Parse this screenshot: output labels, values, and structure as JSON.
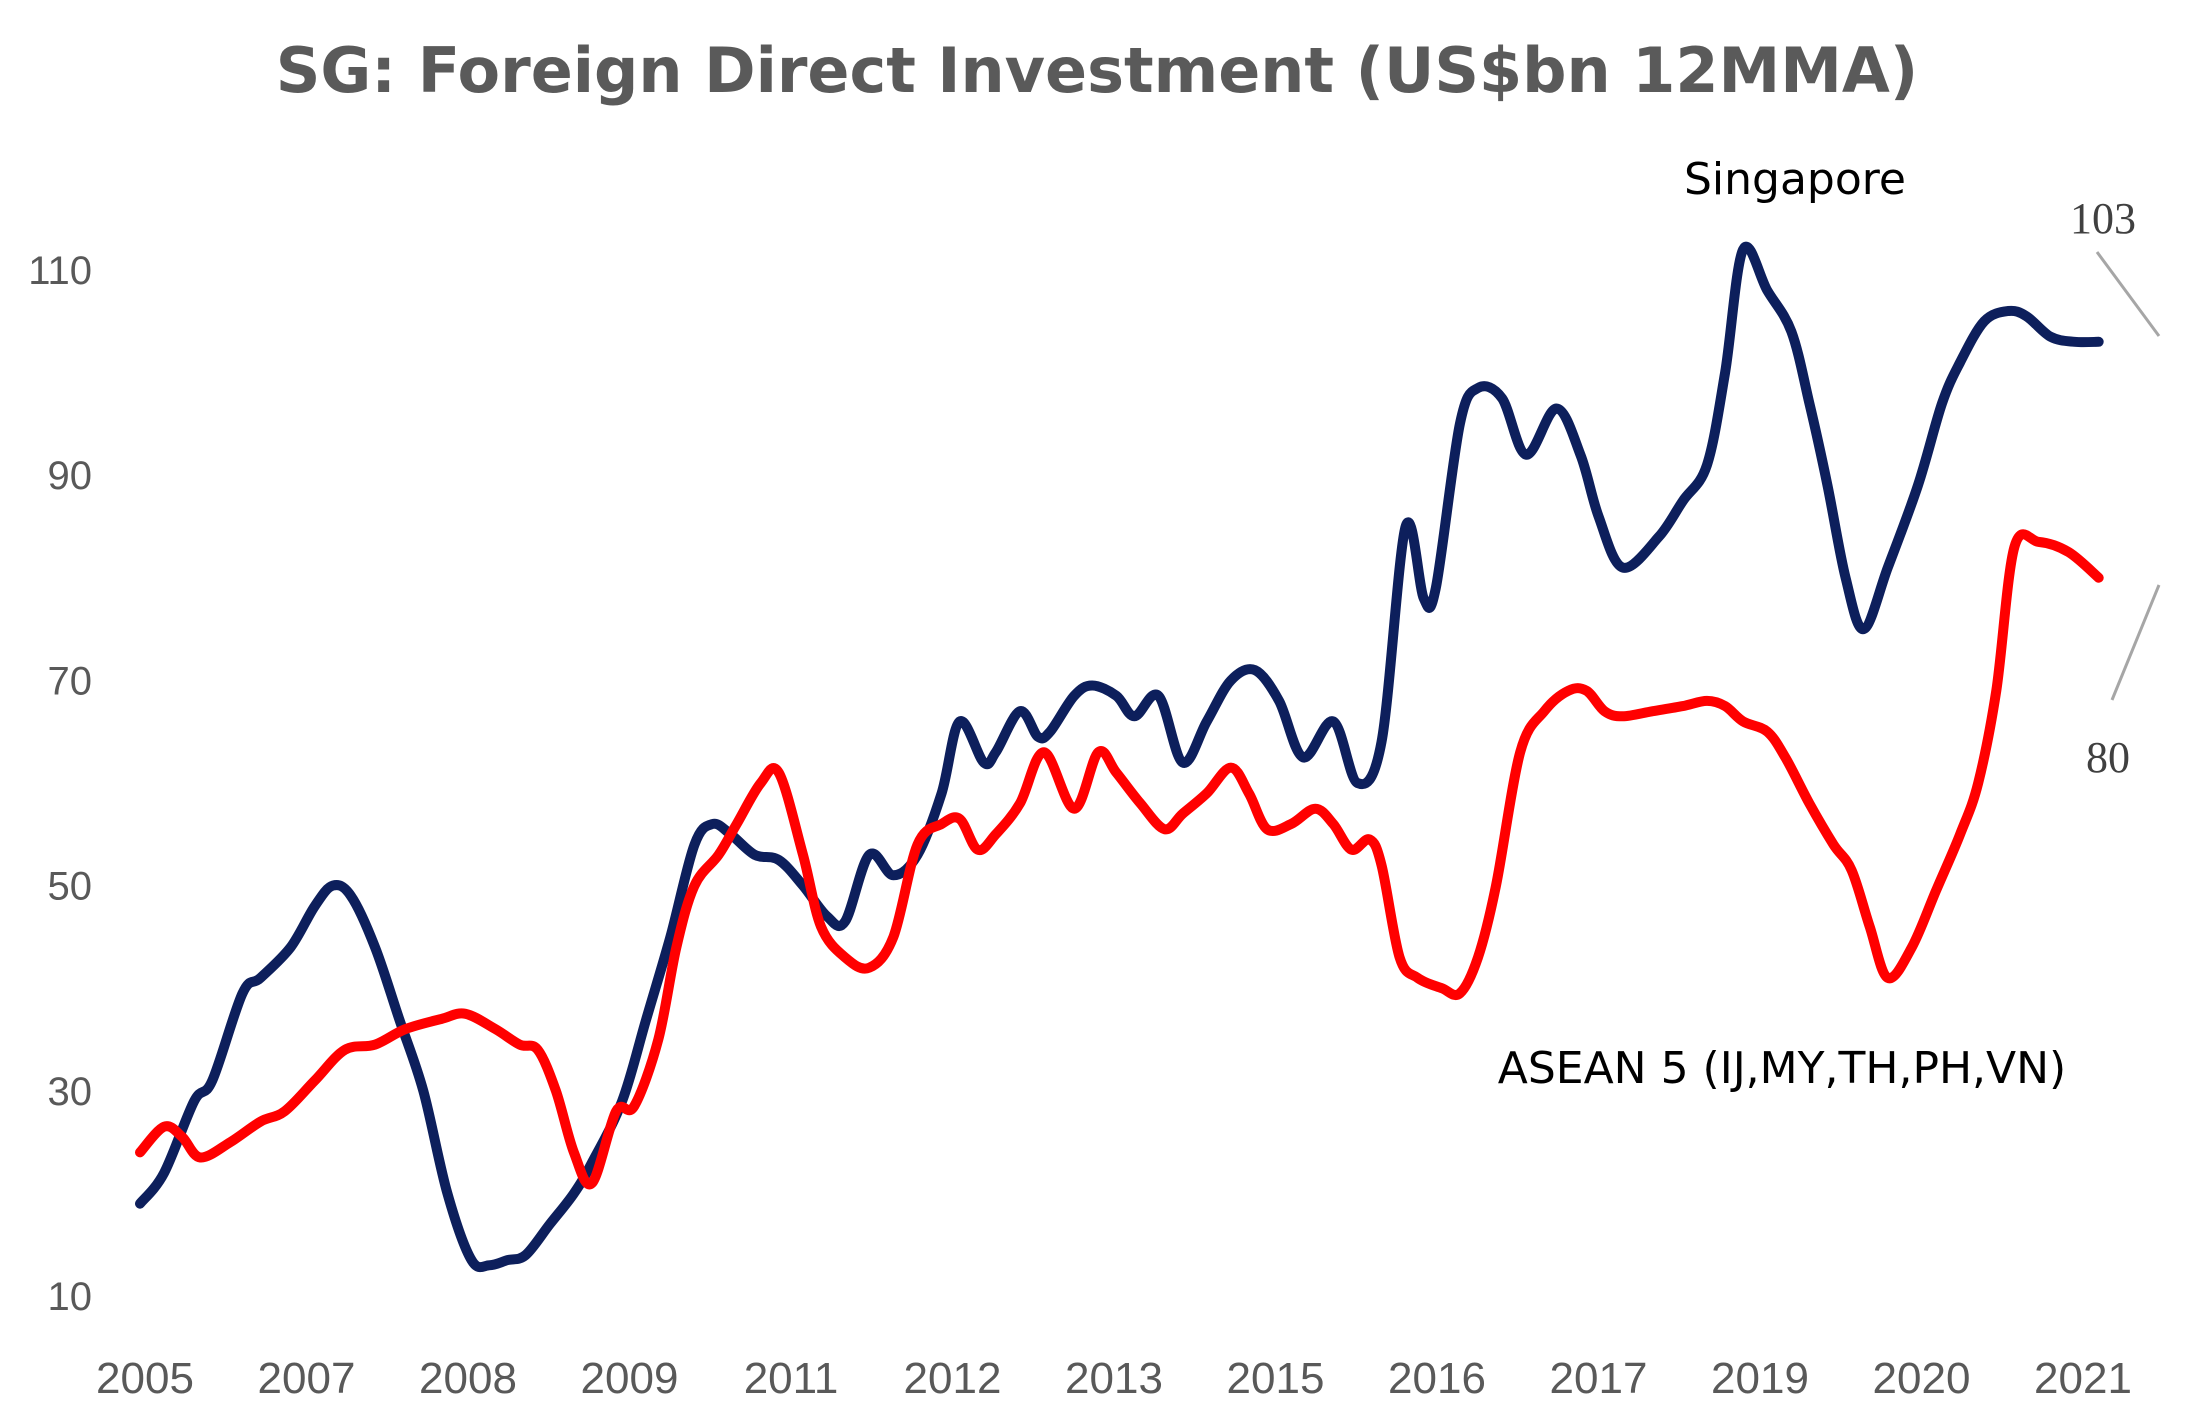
{
  "chart_data": {
    "type": "line",
    "title": "SG: Foreign Direct Investment (US$bn 12MMA)",
    "xlabel": "",
    "ylabel": "",
    "x_tick_labels": [
      "2005",
      "2007",
      "2008",
      "2009",
      "2011",
      "2012",
      "2013",
      "2015",
      "2016",
      "2017",
      "2019",
      "2020",
      "2021"
    ],
    "y_ticks": [
      10,
      30,
      50,
      70,
      90,
      110
    ],
    "ylim": [
      10,
      120
    ],
    "xlim": [
      2005.0,
      2021.75
    ],
    "grid": false,
    "legend": "none",
    "series": [
      {
        "name": "Singapore",
        "color": "#0d1f5c",
        "end_value_label": "103",
        "points": [
          [
            2005.0,
            19
          ],
          [
            2005.2,
            22
          ],
          [
            2005.45,
            29
          ],
          [
            2005.6,
            31
          ],
          [
            2005.85,
            39.5
          ],
          [
            2006.0,
            41
          ],
          [
            2006.25,
            44
          ],
          [
            2006.45,
            48
          ],
          [
            2006.6,
            50
          ],
          [
            2006.75,
            49
          ],
          [
            2006.95,
            44
          ],
          [
            2007.15,
            37
          ],
          [
            2007.35,
            30
          ],
          [
            2007.55,
            20
          ],
          [
            2007.75,
            13.5
          ],
          [
            2007.9,
            13
          ],
          [
            2008.05,
            13.5
          ],
          [
            2008.2,
            14
          ],
          [
            2008.4,
            17
          ],
          [
            2008.6,
            20
          ],
          [
            2008.75,
            23
          ],
          [
            2009.0,
            29
          ],
          [
            2009.2,
            37
          ],
          [
            2009.4,
            45
          ],
          [
            2009.6,
            54
          ],
          [
            2009.75,
            56
          ],
          [
            2009.9,
            55
          ],
          [
            2010.1,
            53
          ],
          [
            2010.3,
            52.5
          ],
          [
            2010.5,
            50
          ],
          [
            2010.7,
            47
          ],
          [
            2010.85,
            46.5
          ],
          [
            2011.05,
            53
          ],
          [
            2011.25,
            51
          ],
          [
            2011.45,
            53
          ],
          [
            2011.65,
            59
          ],
          [
            2011.8,
            66
          ],
          [
            2012.0,
            62
          ],
          [
            2012.1,
            63
          ],
          [
            2012.3,
            67
          ],
          [
            2012.45,
            64.5
          ],
          [
            2012.55,
            65
          ],
          [
            2012.75,
            68.5
          ],
          [
            2012.9,
            69.5
          ],
          [
            2013.1,
            68.5
          ],
          [
            2013.25,
            66.5
          ],
          [
            2013.45,
            68.5
          ],
          [
            2013.65,
            62
          ],
          [
            2013.85,
            66
          ],
          [
            2014.05,
            70
          ],
          [
            2014.25,
            71
          ],
          [
            2014.45,
            68
          ],
          [
            2014.65,
            62.5
          ],
          [
            2014.9,
            66
          ],
          [
            2015.1,
            60
          ],
          [
            2015.3,
            64
          ],
          [
            2015.5,
            85
          ],
          [
            2015.65,
            78
          ],
          [
            2015.75,
            79
          ],
          [
            2015.95,
            95
          ],
          [
            2016.1,
            98.5
          ],
          [
            2016.3,
            97.5
          ],
          [
            2016.5,
            92
          ],
          [
            2016.75,
            96.5
          ],
          [
            2016.95,
            92
          ],
          [
            2017.1,
            86
          ],
          [
            2017.3,
            81
          ],
          [
            2017.6,
            84
          ],
          [
            2017.8,
            87.5
          ],
          [
            2018.0,
            91
          ],
          [
            2018.15,
            100
          ],
          [
            2018.3,
            112
          ],
          [
            2018.5,
            108
          ],
          [
            2018.7,
            104
          ],
          [
            2018.85,
            97
          ],
          [
            2019.0,
            89
          ],
          [
            2019.15,
            80
          ],
          [
            2019.3,
            75
          ],
          [
            2019.5,
            81
          ],
          [
            2019.75,
            89
          ],
          [
            2019.95,
            97
          ],
          [
            2020.1,
            101
          ],
          [
            2020.3,
            105
          ],
          [
            2020.5,
            106
          ],
          [
            2020.65,
            105.5
          ],
          [
            2020.85,
            103.5
          ],
          [
            2021.05,
            103
          ],
          [
            2021.25,
            103
          ]
        ]
      },
      {
        "name": "ASEAN 5 (IJ,MY,TH,PH,VN)",
        "color": "#ff0000",
        "end_value_label": "80",
        "points": [
          [
            2005.0,
            24
          ],
          [
            2005.2,
            26.5
          ],
          [
            2005.35,
            25.5
          ],
          [
            2005.5,
            23.5
          ],
          [
            2005.75,
            25
          ],
          [
            2006.0,
            27
          ],
          [
            2006.2,
            28
          ],
          [
            2006.45,
            31
          ],
          [
            2006.7,
            34
          ],
          [
            2006.95,
            34.5
          ],
          [
            2007.2,
            36
          ],
          [
            2007.5,
            37
          ],
          [
            2007.7,
            37.5
          ],
          [
            2007.95,
            36
          ],
          [
            2008.15,
            34.5
          ],
          [
            2008.3,
            34
          ],
          [
            2008.45,
            30
          ],
          [
            2008.6,
            24
          ],
          [
            2008.75,
            21
          ],
          [
            2008.95,
            28
          ],
          [
            2009.1,
            28.5
          ],
          [
            2009.3,
            35
          ],
          [
            2009.45,
            44
          ],
          [
            2009.6,
            50
          ],
          [
            2009.8,
            53
          ],
          [
            2009.95,
            56
          ],
          [
            2010.15,
            60
          ],
          [
            2010.3,
            61
          ],
          [
            2010.5,
            53
          ],
          [
            2010.65,
            46
          ],
          [
            2010.85,
            43
          ],
          [
            2011.05,
            42
          ],
          [
            2011.25,
            45
          ],
          [
            2011.45,
            54
          ],
          [
            2011.65,
            56
          ],
          [
            2011.8,
            56.5
          ],
          [
            2011.95,
            53.5
          ],
          [
            2012.1,
            55
          ],
          [
            2012.3,
            58
          ],
          [
            2012.5,
            63
          ],
          [
            2012.75,
            57.5
          ],
          [
            2012.95,
            63
          ],
          [
            2013.1,
            61
          ],
          [
            2013.3,
            58
          ],
          [
            2013.5,
            55.5
          ],
          [
            2013.65,
            57
          ],
          [
            2013.85,
            59
          ],
          [
            2014.05,
            61.5
          ],
          [
            2014.2,
            59
          ],
          [
            2014.35,
            55.5
          ],
          [
            2014.55,
            56
          ],
          [
            2014.75,
            57.5
          ],
          [
            2014.9,
            56
          ],
          [
            2015.05,
            53.5
          ],
          [
            2015.2,
            54.5
          ],
          [
            2015.3,
            52
          ],
          [
            2015.45,
            43
          ],
          [
            2015.6,
            41
          ],
          [
            2015.8,
            40
          ],
          [
            2015.95,
            39.5
          ],
          [
            2016.1,
            43
          ],
          [
            2016.25,
            50
          ],
          [
            2016.45,
            63
          ],
          [
            2016.65,
            67
          ],
          [
            2016.85,
            69
          ],
          [
            2017.0,
            69
          ],
          [
            2017.15,
            67
          ],
          [
            2017.3,
            66.5
          ],
          [
            2017.55,
            67
          ],
          [
            2017.8,
            67.5
          ],
          [
            2018.0,
            68
          ],
          [
            2018.15,
            67.5
          ],
          [
            2018.3,
            66
          ],
          [
            2018.5,
            65
          ],
          [
            2018.65,
            62.5
          ],
          [
            2018.85,
            58
          ],
          [
            2019.05,
            54
          ],
          [
            2019.2,
            51.5
          ],
          [
            2019.35,
            46
          ],
          [
            2019.5,
            41
          ],
          [
            2019.7,
            44
          ],
          [
            2019.9,
            49.5
          ],
          [
            2020.1,
            55
          ],
          [
            2020.25,
            60
          ],
          [
            2020.4,
            69
          ],
          [
            2020.55,
            83
          ],
          [
            2020.75,
            83.5
          ],
          [
            2021.0,
            82.5
          ],
          [
            2021.25,
            80
          ]
        ]
      }
    ],
    "annotations": [
      {
        "text": "Singapore",
        "series": "Singapore"
      },
      {
        "text": "ASEAN 5 (IJ,MY,TH,PH,VN)",
        "series": "ASEAN 5 (IJ,MY,TH,PH,VN)"
      },
      {
        "text": "103",
        "series": "Singapore"
      },
      {
        "text": "80",
        "series": "ASEAN 5 (IJ,MY,TH,PH,VN)"
      }
    ],
    "leader_line_color": "#a6a6a6"
  }
}
